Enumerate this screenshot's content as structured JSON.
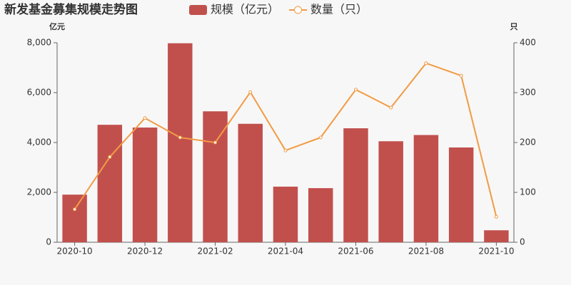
{
  "chart_data": {
    "type": "bar-line",
    "title": "新发基金募集规模走势图",
    "categories": [
      "2020-10",
      null,
      "2020-12",
      null,
      "2021-02",
      null,
      "2021-04",
      null,
      "2021-06",
      null,
      "2021-08",
      null,
      "2021-10"
    ],
    "series": [
      {
        "name": "规模（亿元）",
        "type": "bar",
        "color": "#c1504d",
        "values": [
          1910,
          4710,
          4600,
          7980,
          5250,
          4750,
          2230,
          2170,
          4570,
          4050,
          4300,
          3800,
          480
        ]
      },
      {
        "name": "数量（只）",
        "type": "line",
        "axis": "y2",
        "color": "#f29b43",
        "values": [
          66,
          171,
          249,
          210,
          200,
          301,
          184,
          210,
          306,
          270,
          359,
          334,
          51
        ]
      }
    ],
    "ylabel": "亿元",
    "y2label": "只",
    "ylim": [
      0,
      8000
    ],
    "yticks": [
      0,
      {
        "value": 2000,
        "label": "2,000"
      },
      {
        "value": 4000,
        "label": "4,000"
      },
      {
        "value": 6000,
        "label": "6,000"
      },
      {
        "value": 8000,
        "label": "8,000"
      }
    ],
    "y2lim": [
      0,
      400
    ],
    "y2ticks": [
      0,
      100,
      200,
      300,
      400
    ]
  }
}
